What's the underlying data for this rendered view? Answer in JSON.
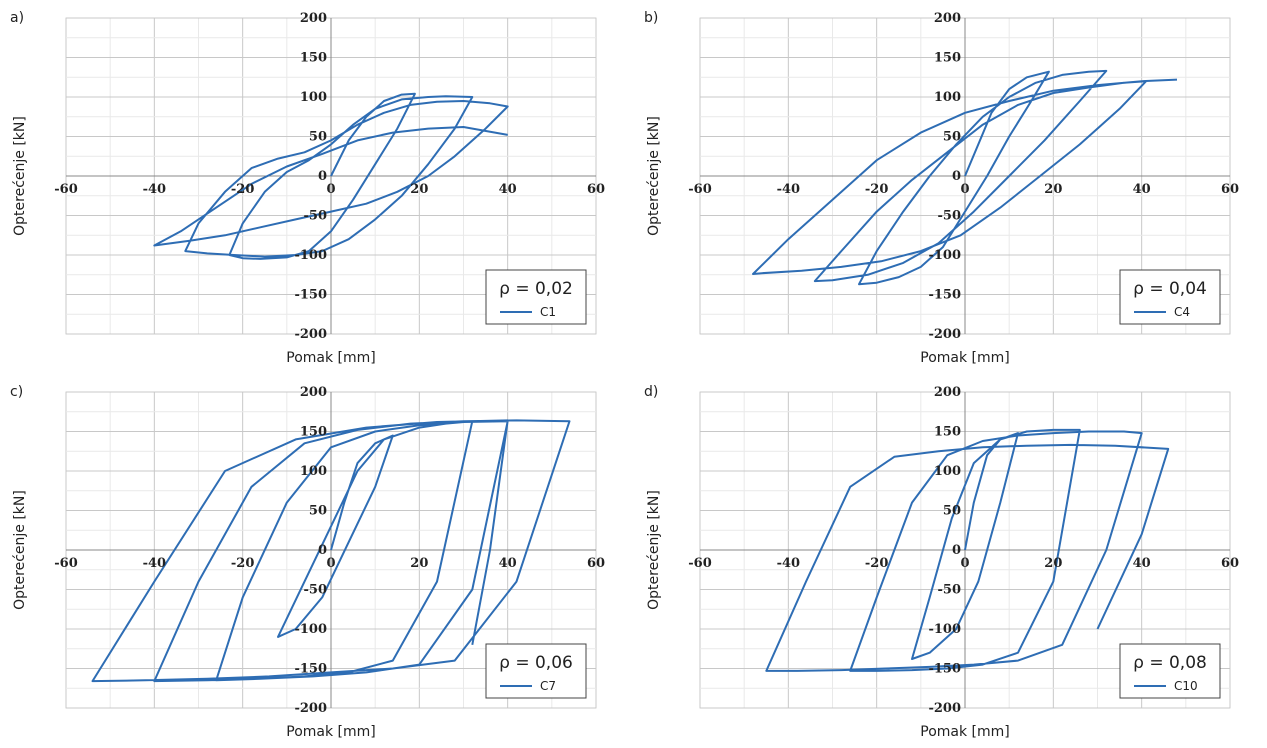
{
  "chart_data": [
    {
      "panel_label": "a)",
      "type": "line",
      "xlabel": "Pomak [mm]",
      "ylabel": "Opterećenje [kN]",
      "xlim": [
        -60,
        60
      ],
      "ylim": [
        -200,
        200
      ],
      "x_ticks": [
        -60,
        -40,
        -20,
        0,
        20,
        40,
        60
      ],
      "y_ticks": [
        -200,
        -150,
        -100,
        -50,
        0,
        50,
        100,
        150,
        200
      ],
      "x_tick_labels": [
        "-60",
        "-40",
        "-20",
        "0",
        "20",
        "40",
        "60"
      ],
      "y_tick_labels": [
        "-200",
        "-150",
        "-100",
        "-50",
        "0",
        "50",
        "100",
        "150",
        "200"
      ],
      "grid": true,
      "legend_title": "ρ = 0,02",
      "legend_placement": "bottom-right",
      "color": "#2E6DB4",
      "series": [
        {
          "name": "C1",
          "x": [
            0,
            4,
            8,
            12,
            16,
            19,
            15,
            10,
            5,
            0,
            -5,
            -10,
            -16,
            -20,
            -23,
            -20,
            -15,
            -10,
            -5,
            0,
            5,
            10,
            16,
            22,
            26,
            32,
            28,
            22,
            16,
            10,
            4,
            -2,
            -8,
            -15,
            -22,
            -28,
            -33,
            -30,
            -24,
            -18,
            -12,
            -6,
            0,
            6,
            12,
            18,
            24,
            30,
            36,
            40,
            35,
            28,
            22,
            15,
            8,
            0,
            -8,
            -16,
            -24,
            -32,
            -40,
            -34,
            -26,
            -18,
            -10,
            -2,
            6,
            14,
            22,
            30,
            40
          ],
          "y": [
            0,
            45,
            75,
            95,
            103,
            104,
            60,
            15,
            -30,
            -70,
            -95,
            -103,
            -105,
            -104,
            -100,
            -60,
            -20,
            5,
            20,
            40,
            65,
            85,
            97,
            100,
            101,
            100,
            60,
            15,
            -25,
            -55,
            -80,
            -95,
            -100,
            -102,
            -100,
            -98,
            -95,
            -60,
            -20,
            10,
            22,
            30,
            45,
            65,
            80,
            90,
            94,
            95,
            92,
            88,
            60,
            25,
            0,
            -20,
            -35,
            -45,
            -55,
            -65,
            -75,
            -82,
            -88,
            -70,
            -40,
            -10,
            12,
            28,
            45,
            55,
            60,
            62,
            52
          ]
        }
      ]
    },
    {
      "panel_label": "b)",
      "type": "line",
      "xlabel": "Pomak [mm]",
      "ylabel": "Opterećenje [kN]",
      "xlim": [
        -60,
        60
      ],
      "ylim": [
        -200,
        200
      ],
      "x_ticks": [
        -60,
        -40,
        -20,
        0,
        20,
        40,
        60
      ],
      "y_ticks": [
        -200,
        -150,
        -100,
        -50,
        0,
        50,
        100,
        150,
        200
      ],
      "x_tick_labels": [
        "-60",
        "-40",
        "-20",
        "0",
        "20",
        "40",
        "60"
      ],
      "y_tick_labels": [
        "-200",
        "-150",
        "-100",
        "-50",
        "0",
        "50",
        "100",
        "150",
        "200"
      ],
      "grid": true,
      "legend_title": "ρ = 0,04",
      "legend_placement": "bottom-right",
      "color": "#2E6DB4",
      "series": [
        {
          "name": "C4",
          "x": [
            0,
            3,
            6,
            10,
            14,
            19,
            15,
            10,
            5,
            0,
            -5,
            -10,
            -15,
            -20,
            -24,
            -20,
            -14,
            -8,
            -2,
            4,
            10,
            16,
            22,
            28,
            32,
            26,
            18,
            10,
            2,
            -6,
            -14,
            -22,
            -30,
            -34,
            -28,
            -20,
            -12,
            -4,
            4,
            12,
            20,
            28,
            36,
            41,
            35,
            26,
            17,
            8,
            -1,
            -10,
            -19,
            -28,
            -37,
            -46,
            -48,
            -40,
            -30,
            -20,
            -10,
            0,
            10,
            20,
            30,
            40,
            48
          ],
          "y": [
            0,
            40,
            80,
            110,
            125,
            132,
            95,
            50,
            0,
            -45,
            -90,
            -115,
            -128,
            -135,
            -137,
            -95,
            -45,
            0,
            40,
            75,
            100,
            118,
            128,
            132,
            133,
            95,
            45,
            0,
            -45,
            -85,
            -110,
            -125,
            -132,
            -133,
            -95,
            -45,
            -5,
            30,
            65,
            90,
            105,
            112,
            118,
            120,
            85,
            40,
            0,
            -40,
            -75,
            -95,
            -108,
            -115,
            -120,
            -123,
            -124,
            -80,
            -30,
            20,
            55,
            80,
            95,
            108,
            115,
            120,
            122
          ]
        }
      ]
    },
    {
      "panel_label": "c)",
      "type": "line",
      "xlabel": "Pomak [mm]",
      "ylabel": "Opterećenje [kN]",
      "xlim": [
        -60,
        60
      ],
      "ylim": [
        -200,
        200
      ],
      "x_ticks": [
        -60,
        -40,
        -20,
        0,
        20,
        40,
        60
      ],
      "y_ticks": [
        -200,
        -150,
        -100,
        -50,
        0,
        50,
        100,
        150,
        200
      ],
      "x_tick_labels": [
        "-60",
        "-40",
        "-20",
        "0",
        "20",
        "40",
        "60"
      ],
      "y_tick_labels": [
        "-200",
        "-150",
        "-100",
        "-50",
        "0",
        "50",
        "100",
        "150",
        "200"
      ],
      "grid": true,
      "legend_title": "ρ = 0,06",
      "legend_placement": "bottom-right",
      "color": "#2E6DB4",
      "series": [
        {
          "name": "C7",
          "x": [
            0,
            3,
            6,
            10,
            14,
            10,
            4,
            -2,
            -8,
            -12,
            -6,
            0,
            6,
            12,
            20,
            26,
            32,
            24,
            14,
            4,
            -6,
            -16,
            -26,
            -20,
            -10,
            0,
            10,
            20,
            30,
            40,
            32,
            20,
            8,
            -4,
            -16,
            -28,
            -40,
            -30,
            -18,
            -6,
            6,
            18,
            30,
            42,
            54,
            42,
            28,
            14,
            0,
            -14,
            -28,
            -42,
            -54,
            -40,
            -24,
            -8,
            8,
            24,
            40,
            36,
            32
          ],
          "y": [
            0,
            60,
            110,
            135,
            145,
            80,
            10,
            -60,
            -100,
            -110,
            -40,
            30,
            100,
            140,
            155,
            160,
            163,
            -40,
            -140,
            -155,
            -160,
            -163,
            -165,
            -60,
            60,
            130,
            150,
            158,
            162,
            163,
            -50,
            -145,
            -155,
            -160,
            -163,
            -165,
            -166,
            -40,
            80,
            135,
            152,
            160,
            163,
            164,
            163,
            -40,
            -140,
            -150,
            -155,
            -160,
            -163,
            -165,
            -166,
            -40,
            100,
            140,
            155,
            162,
            164,
            0,
            -120
          ]
        }
      ]
    },
    {
      "panel_label": "d)",
      "type": "line",
      "xlabel": "Pomak [mm]",
      "ylabel": "Opterećenje [kN]",
      "xlim": [
        -60,
        60
      ],
      "ylim": [
        -200,
        200
      ],
      "x_ticks": [
        -60,
        -40,
        -20,
        0,
        20,
        40,
        60
      ],
      "y_ticks": [
        -200,
        -150,
        -100,
        -50,
        0,
        50,
        100,
        150,
        200
      ],
      "x_tick_labels": [
        "-60",
        "-40",
        "-20",
        "0",
        "20",
        "40",
        "60"
      ],
      "y_tick_labels": [
        "-200",
        "-150",
        "-100",
        "-50",
        "0",
        "50",
        "100",
        "150",
        "200"
      ],
      "grid": true,
      "legend_title": "ρ = 0,08",
      "legend_placement": "bottom-right",
      "color": "#2E6DB4",
      "series": [
        {
          "name": "C10",
          "x": [
            0,
            2,
            5,
            8,
            12,
            8,
            3,
            -2,
            -8,
            -12,
            -8,
            -3,
            2,
            8,
            14,
            20,
            26,
            20,
            12,
            4,
            -4,
            -12,
            -20,
            -26,
            -20,
            -12,
            -4,
            4,
            12,
            20,
            28,
            36,
            40,
            32,
            22,
            12,
            2,
            -8,
            -18,
            -28,
            -38,
            -45,
            -36,
            -26,
            -16,
            -6,
            4,
            14,
            24,
            34,
            46,
            40,
            30
          ],
          "y": [
            0,
            60,
            120,
            140,
            148,
            60,
            -40,
            -100,
            -130,
            -138,
            -60,
            40,
            110,
            140,
            150,
            152,
            152,
            -40,
            -130,
            -145,
            -150,
            -152,
            -153,
            -153,
            -60,
            60,
            120,
            138,
            145,
            148,
            150,
            150,
            148,
            0,
            -120,
            -140,
            -145,
            -148,
            -150,
            -152,
            -153,
            -153,
            -40,
            80,
            118,
            125,
            130,
            132,
            133,
            132,
            128,
            20,
            -100
          ]
        }
      ]
    }
  ]
}
